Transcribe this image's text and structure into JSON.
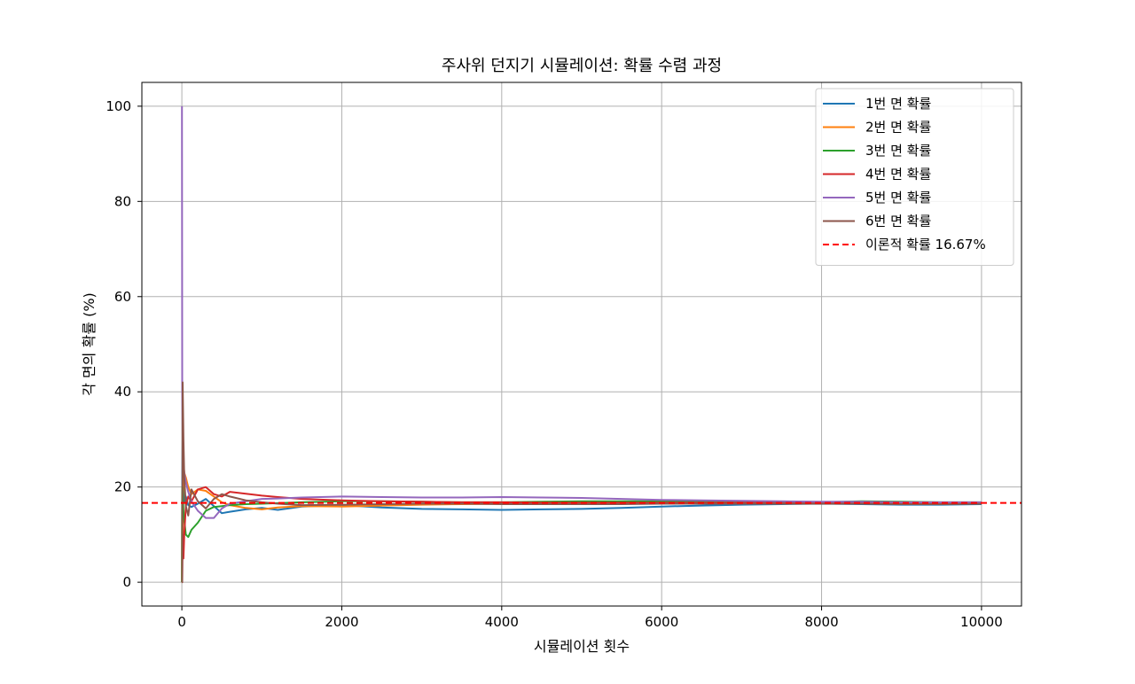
{
  "chart_data": {
    "type": "line",
    "title": "주사위 던지기 시뮬레이션: 확률 수렴 과정",
    "xlabel": "시뮬레이션 횟수",
    "ylabel": "각 면의 확률 (%)",
    "xlim": [
      -500,
      10500
    ],
    "ylim": [
      -5,
      105
    ],
    "xticks": [
      0,
      2000,
      4000,
      6000,
      8000,
      10000
    ],
    "yticks": [
      0,
      20,
      40,
      60,
      80,
      100
    ],
    "grid": true,
    "legend_position": "top-right",
    "series": [
      {
        "name": "1번 면 확률",
        "color": "#1f77b4",
        "x": [
          1,
          5,
          10,
          20,
          30,
          50,
          80,
          120,
          200,
          300,
          400,
          500,
          600,
          800,
          1000,
          1200,
          1500,
          2000,
          2500,
          3000,
          3500,
          4000,
          4500,
          5000,
          5500,
          6000,
          6500,
          7000,
          7500,
          8000,
          8500,
          9000,
          9500,
          10000
        ],
        "values": [
          0,
          20,
          30,
          20,
          16.7,
          18,
          16.2,
          15.8,
          16.5,
          17.5,
          16,
          14.5,
          14.8,
          15.3,
          15.6,
          15.2,
          15.9,
          16.2,
          15.7,
          15.4,
          15.3,
          15.2,
          15.3,
          15.4,
          15.6,
          15.9,
          16.1,
          16.3,
          16.4,
          16.5,
          16.4,
          16.3,
          16.3,
          16.4
        ]
      },
      {
        "name": "2번 면 확률",
        "color": "#ff7f0e",
        "x": [
          1,
          5,
          10,
          20,
          30,
          50,
          80,
          120,
          200,
          300,
          400,
          500,
          600,
          800,
          1000,
          1200,
          1500,
          2000,
          2500,
          3000,
          3500,
          4000,
          4500,
          5000,
          5500,
          6000,
          6500,
          7000,
          7500,
          8000,
          8500,
          9000,
          9500,
          10000
        ],
        "values": [
          0,
          20,
          10,
          25,
          23,
          22,
          20,
          18.5,
          19.5,
          19.2,
          18,
          16.8,
          16.2,
          15.6,
          15.3,
          15.7,
          16,
          15.9,
          16.1,
          16.3,
          16.4,
          16.5,
          16.6,
          16.6,
          16.6,
          16.7,
          16.7,
          16.7,
          16.6,
          16.6,
          16.6,
          16.7,
          16.7,
          16.6
        ]
      },
      {
        "name": "3번 면 확률",
        "color": "#2ca02c",
        "x": [
          1,
          5,
          10,
          20,
          30,
          50,
          80,
          120,
          200,
          300,
          400,
          500,
          600,
          800,
          1000,
          1200,
          1500,
          2000,
          2500,
          3000,
          3500,
          4000,
          4500,
          5000,
          5500,
          6000,
          6500,
          7000,
          7500,
          8000,
          8500,
          9000,
          9500,
          10000
        ],
        "values": [
          0,
          20,
          20,
          15,
          13,
          10,
          9.5,
          11,
          12.5,
          15,
          15.8,
          16,
          16.2,
          16.4,
          16.5,
          16.6,
          16.8,
          17,
          17,
          16.9,
          16.8,
          16.8,
          16.9,
          17,
          17,
          17,
          16.9,
          16.9,
          16.9,
          16.8,
          17,
          16.9,
          16.8,
          16.8
        ]
      },
      {
        "name": "4번 면 확률",
        "color": "#d62728",
        "x": [
          1,
          5,
          10,
          20,
          30,
          50,
          80,
          120,
          200,
          300,
          400,
          500,
          600,
          800,
          1000,
          1200,
          1500,
          2000,
          2500,
          3000,
          3500,
          4000,
          4500,
          5000,
          5500,
          6000,
          6500,
          7000,
          7500,
          8000,
          8500,
          9000,
          9500,
          10000
        ],
        "values": [
          0,
          0,
          10,
          5,
          10,
          16,
          18,
          17,
          19.5,
          20,
          18.5,
          18,
          19,
          18.6,
          18.2,
          17.9,
          17.5,
          17.2,
          17,
          16.9,
          16.8,
          16.8,
          16.7,
          16.7,
          16.7,
          16.7,
          16.7,
          16.7,
          16.6,
          16.6,
          16.6,
          16.7,
          16.7,
          16.7
        ]
      },
      {
        "name": "5번 면 확률",
        "color": "#9467bd",
        "x": [
          1,
          5,
          10,
          20,
          30,
          50,
          80,
          120,
          200,
          300,
          400,
          500,
          600,
          800,
          1000,
          1200,
          1500,
          2000,
          2500,
          3000,
          3500,
          4000,
          4500,
          5000,
          5500,
          6000,
          6500,
          7000,
          7500,
          8000,
          8500,
          9000,
          9500,
          10000
        ],
        "values": [
          100,
          40,
          30,
          25,
          23,
          21,
          19,
          17,
          15,
          13.5,
          13.5,
          15.5,
          16.5,
          17,
          17.5,
          17.6,
          17.8,
          18,
          17.9,
          17.8,
          17.8,
          17.9,
          17.8,
          17.7,
          17.5,
          17.3,
          17.2,
          17.1,
          17,
          16.9,
          16.9,
          16.8,
          16.8,
          16.8
        ]
      },
      {
        "name": "6번 면 확률",
        "color": "#8c564b",
        "x": [
          1,
          5,
          10,
          20,
          30,
          50,
          80,
          120,
          200,
          300,
          400,
          500,
          600,
          800,
          1000,
          1200,
          1500,
          2000,
          2500,
          3000,
          3500,
          4000,
          4500,
          5000,
          5500,
          6000,
          6500,
          7000,
          7500,
          8000,
          8500,
          9000,
          9500,
          10000
        ],
        "values": [
          0,
          0,
          42,
          30,
          22,
          16,
          14,
          19.5,
          17,
          15.5,
          17.5,
          18.5,
          18,
          17.2,
          16.8,
          16.5,
          16.2,
          16.3,
          16.4,
          16.5,
          16.5,
          16.4,
          16.4,
          16.4,
          16.4,
          16.5,
          16.5,
          16.5,
          16.5,
          16.5,
          16.5,
          16.4,
          16.4,
          16.5
        ]
      }
    ],
    "reference_line": {
      "name": "이론적 확률 16.67%",
      "value": 16.67,
      "color": "#ff0000",
      "style": "dashed"
    }
  }
}
